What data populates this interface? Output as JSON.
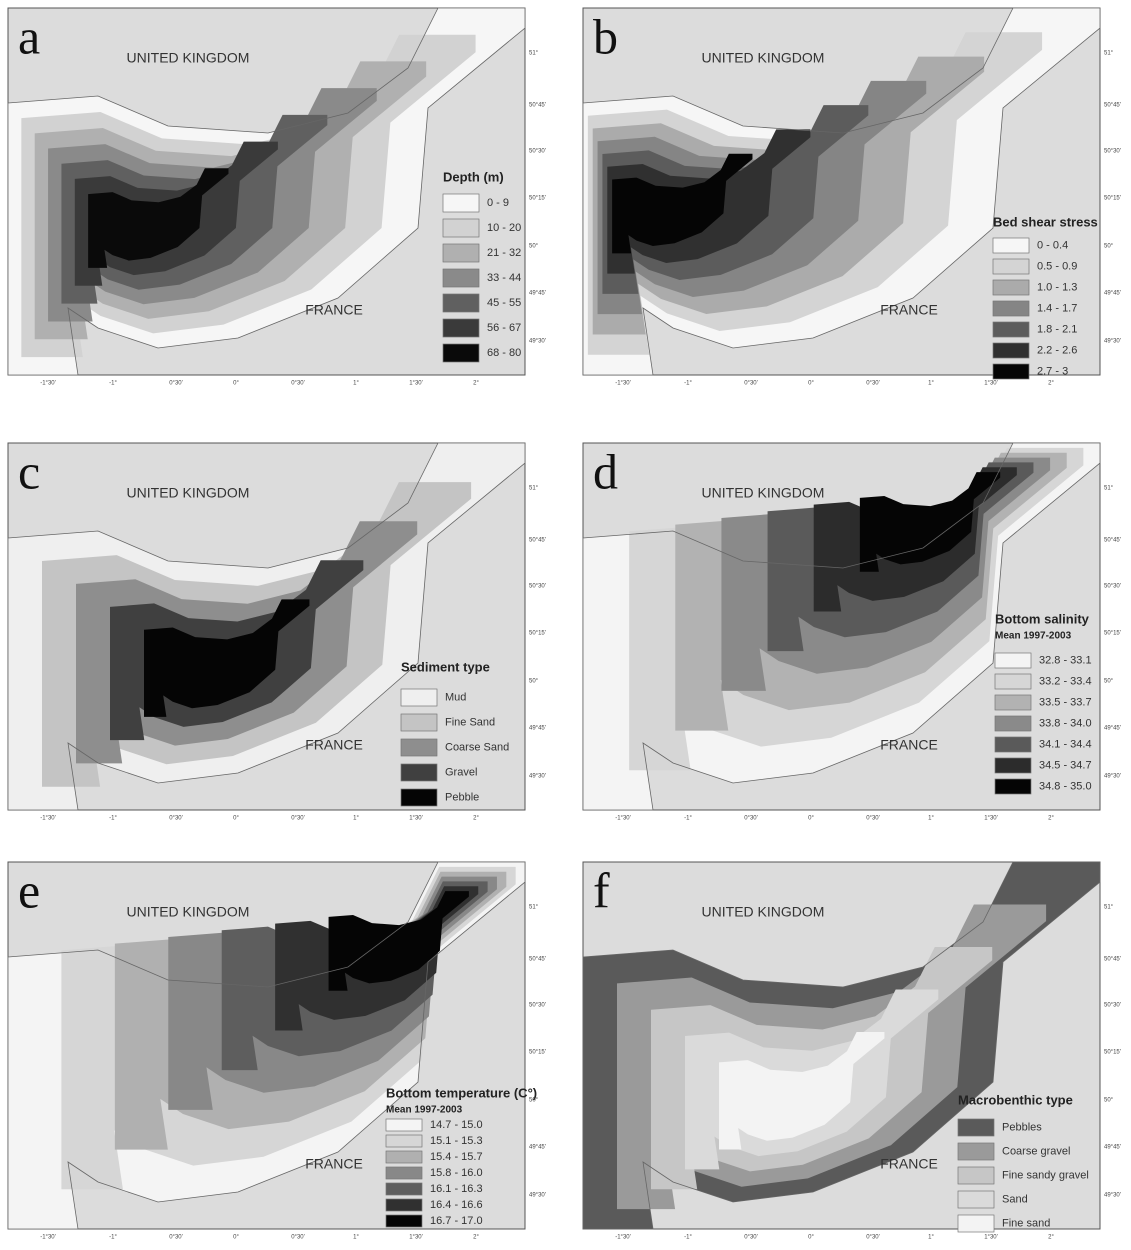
{
  "panels": [
    {
      "letter": "a",
      "uk": "UNITED KINGDOM",
      "france": "FRANCE",
      "legend": {
        "title": "Depth (m)",
        "items": [
          {
            "label": "0 - 9",
            "color": "#f6f6f6"
          },
          {
            "label": "10 - 20",
            "color": "#d2d2d2"
          },
          {
            "label": "21 - 32",
            "color": "#b0b0b0"
          },
          {
            "label": "33 - 44",
            "color": "#8a8a8a"
          },
          {
            "label": "45 - 55",
            "color": "#606060"
          },
          {
            "label": "56 - 67",
            "color": "#3a3a3a"
          },
          {
            "label": "68 - 80",
            "color": "#0a0a0a"
          }
        ]
      }
    },
    {
      "letter": "b",
      "uk": "UNITED KINGDOM",
      "france": "FRANCE",
      "legend": {
        "title": "Bed shear stress",
        "items": [
          {
            "label": "0 - 0.4",
            "color": "#f6f6f6"
          },
          {
            "label": "0.5 - 0.9",
            "color": "#d4d4d4"
          },
          {
            "label": "1.0 - 1.3",
            "color": "#ababab"
          },
          {
            "label": "1.4 - 1.7",
            "color": "#858585"
          },
          {
            "label": "1.8 - 2.1",
            "color": "#5c5c5c"
          },
          {
            "label": "2.2 - 2.6",
            "color": "#303030"
          },
          {
            "label": "2.7 - 3",
            "color": "#050505"
          }
        ]
      }
    },
    {
      "letter": "c",
      "uk": "UNITED KINGDOM",
      "france": "FRANCE",
      "legend": {
        "title": "Sediment type",
        "items": [
          {
            "label": "Mud",
            "color": "#efefef"
          },
          {
            "label": "Fine Sand",
            "color": "#c4c4c4"
          },
          {
            "label": "Coarse Sand",
            "color": "#8e8e8e"
          },
          {
            "label": "Gravel",
            "color": "#404040"
          },
          {
            "label": "Pebble",
            "color": "#050505"
          }
        ]
      }
    },
    {
      "letter": "d",
      "uk": "UNITED KINGDOM",
      "france": "FRANCE",
      "legend": {
        "title": "Bottom salinity",
        "subtitle": "Mean 1997-2003",
        "items": [
          {
            "label": "32.8 - 33.1",
            "color": "#f4f4f4"
          },
          {
            "label": "33.2 - 33.4",
            "color": "#d6d6d6"
          },
          {
            "label": "33.5 - 33.7",
            "color": "#b2b2b2"
          },
          {
            "label": "33.8 - 34.0",
            "color": "#8a8a8a"
          },
          {
            "label": "34.1 - 34.4",
            "color": "#5a5a5a"
          },
          {
            "label": "34.5 - 34.7",
            "color": "#2c2c2c"
          },
          {
            "label": "34.8 - 35.0",
            "color": "#050505"
          }
        ]
      }
    },
    {
      "letter": "e",
      "uk": "UNITED KINGDOM",
      "france": "FRANCE",
      "legend": {
        "title": "Bottom temperature (C°)",
        "subtitle": "Mean 1997-2003",
        "items": [
          {
            "label": "14.7 - 15.0",
            "color": "#f4f4f4"
          },
          {
            "label": "15.1 - 15.3",
            "color": "#d6d6d6"
          },
          {
            "label": "15.4 - 15.7",
            "color": "#b0b0b0"
          },
          {
            "label": "15.8 - 16.0",
            "color": "#888888"
          },
          {
            "label": "16.1 - 16.3",
            "color": "#5e5e5e"
          },
          {
            "label": "16.4 - 16.6",
            "color": "#303030"
          },
          {
            "label": "16.7 - 17.0",
            "color": "#050505"
          }
        ]
      }
    },
    {
      "letter": "f",
      "uk": "UNITED KINGDOM",
      "france": "FRANCE",
      "legend": {
        "title": "Macrobenthic type",
        "items": [
          {
            "label": "Pebbles",
            "color": "#5a5a5a"
          },
          {
            "label": "Coarse gravel",
            "color": "#9a9a9a"
          },
          {
            "label": "Fine sandy gravel",
            "color": "#c6c6c6"
          },
          {
            "label": "Sand",
            "color": "#dadada"
          },
          {
            "label": "Fine sand",
            "color": "#f3f3f3"
          }
        ]
      }
    }
  ],
  "lon_labels": [
    "-1°30'",
    "-1°",
    "0°30'",
    "0°",
    "0°30'",
    "1°",
    "1°30'",
    "2°"
  ],
  "lat_labels": [
    "51°",
    "50°45'",
    "50°30'",
    "50°15'",
    "50°",
    "49°45'",
    "49°30'"
  ]
}
